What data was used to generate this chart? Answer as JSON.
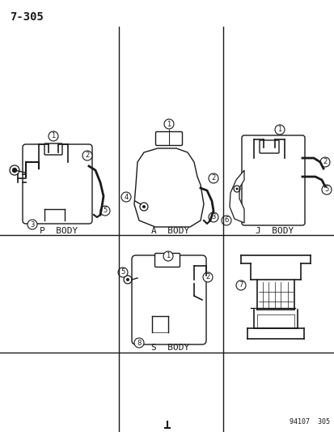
{
  "title": "7-305",
  "footer": "94107  305",
  "background_color": "#ffffff",
  "col": "#1a1a1a",
  "labels": {
    "P_BODY": "P  BODY",
    "A_BODY": "A  BODY",
    "J_BODY": "J  BODY",
    "S_BODY": "S  BODY"
  },
  "fig_width": 4.14,
  "fig_height": 5.33,
  "dpi": 100
}
